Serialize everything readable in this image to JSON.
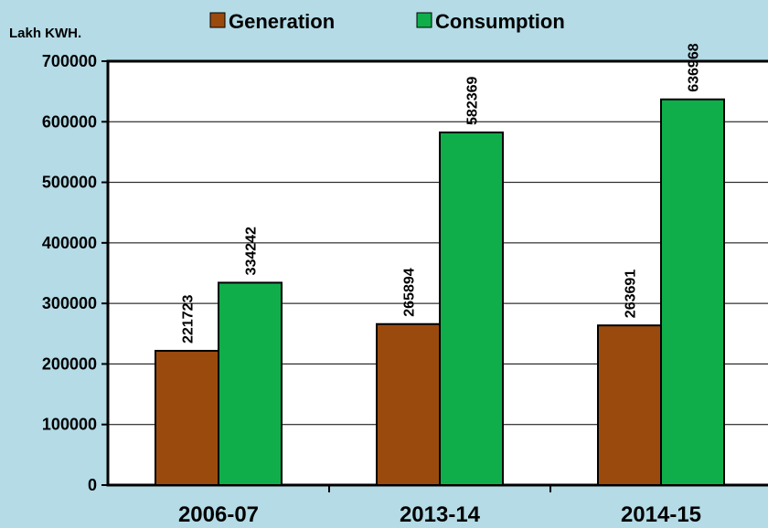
{
  "chart_data": {
    "type": "bar",
    "unit_label": "Lakh KWH.",
    "categories": [
      "2006-07",
      "2013-14",
      "2014-15"
    ],
    "series": [
      {
        "name": "Generation",
        "values": [
          221723,
          265894,
          263691
        ],
        "color": "#9b4a0e"
      },
      {
        "name": "Consumption",
        "values": [
          334242,
          582369,
          636968
        ],
        "color": "#0fae4b"
      }
    ],
    "ylim": [
      0,
      700000
    ],
    "yticks": [
      0,
      100000,
      200000,
      300000,
      400000,
      500000,
      600000,
      700000
    ],
    "grid": true,
    "legend_position": "top"
  },
  "colors": {
    "background": "#b4dbe6",
    "plot_area": "#ffffff",
    "axis": "#000000"
  }
}
